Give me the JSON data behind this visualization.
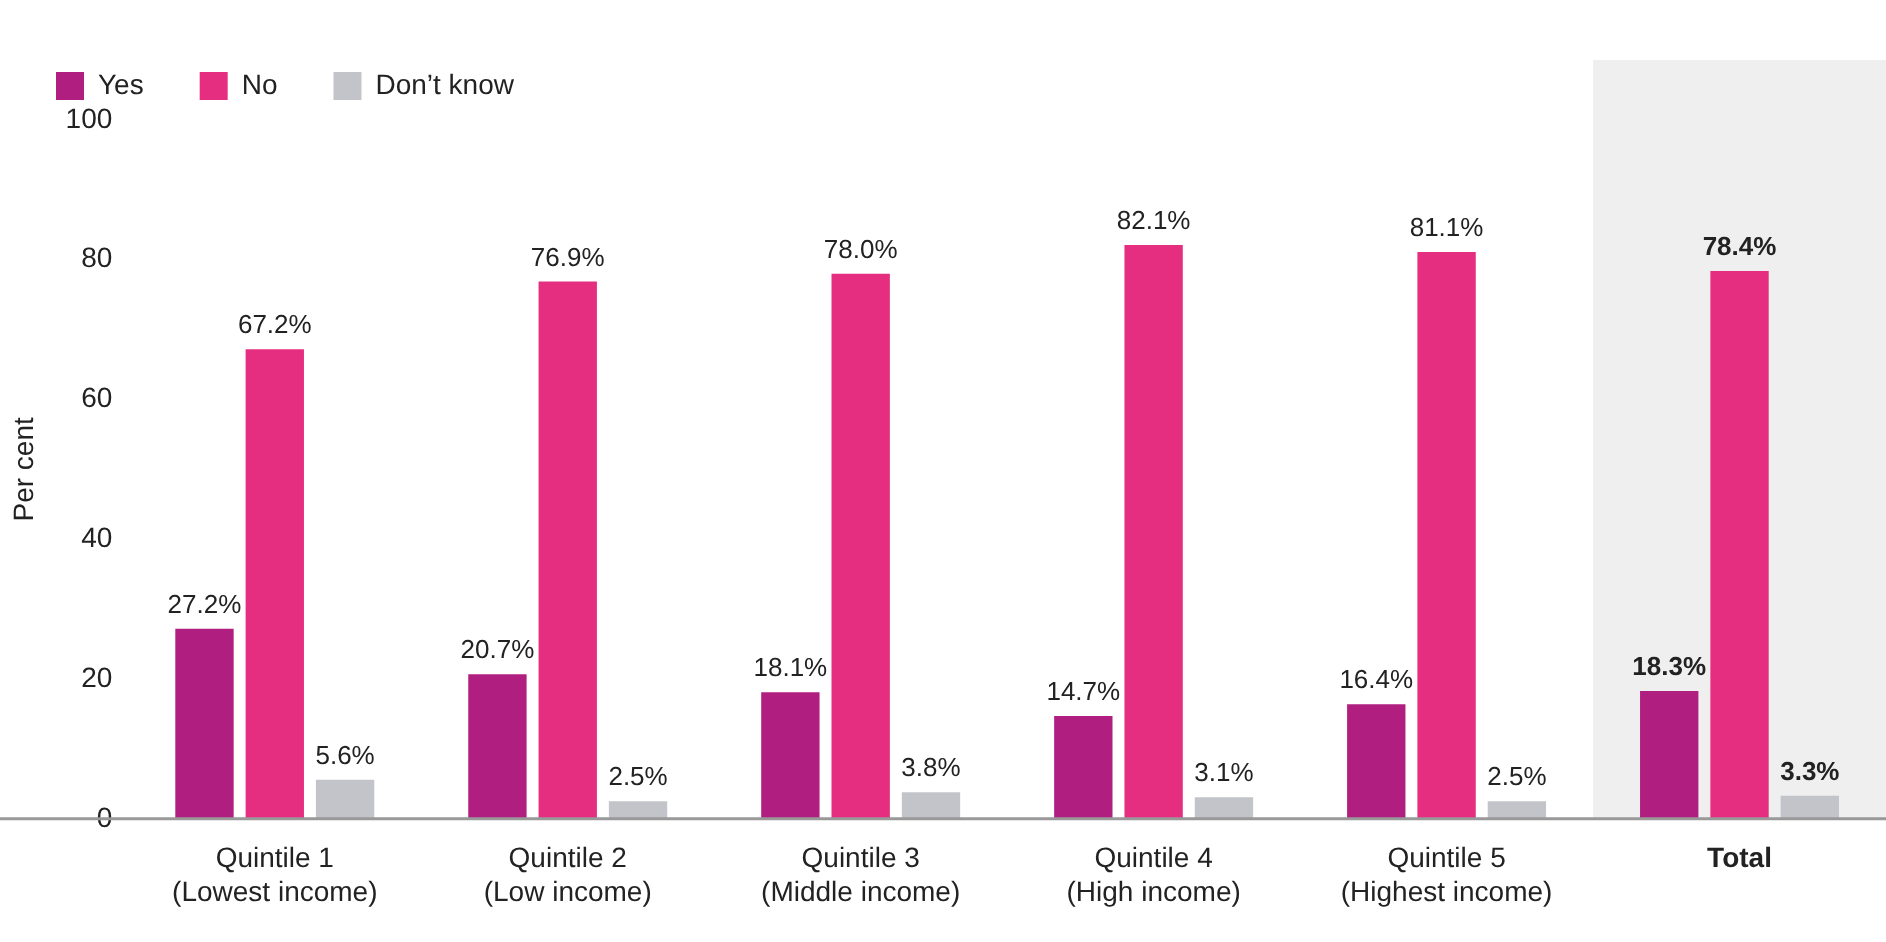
{
  "chart_data": {
    "type": "bar",
    "ylabel": "Per cent",
    "categories": [
      "Quintile 1\n(Lowest income)",
      "Quintile 2\n(Low income)",
      "Quintile 3\n(Middle income)",
      "Quintile 4\n(High income)",
      "Quintile 5\n(Highest income)",
      "Total"
    ],
    "series": [
      {
        "name": "Yes",
        "color": "#b01f80",
        "values": [
          27.2,
          20.7,
          18.1,
          14.7,
          16.4,
          18.3
        ],
        "value_labels": [
          "27.2%",
          "20.7%",
          "18.1%",
          "14.7%",
          "16.4%",
          "18.3%"
        ]
      },
      {
        "name": "No",
        "color": "#e52e7f",
        "values": [
          67.2,
          76.9,
          78.0,
          82.1,
          81.1,
          78.4
        ],
        "value_labels": [
          "67.2%",
          "76.9%",
          "78.0%",
          "82.1%",
          "81.1%",
          "78.4%"
        ]
      },
      {
        "name": "Don’t know",
        "color": "#c2c4ca",
        "values": [
          5.6,
          2.5,
          3.8,
          3.1,
          2.5,
          3.3
        ],
        "value_labels": [
          "5.6%",
          "2.5%",
          "3.8%",
          "3.1%",
          "2.5%",
          "3.3%"
        ]
      }
    ],
    "ylim": [
      0,
      100
    ],
    "yticks": [
      0,
      20,
      40,
      60,
      80,
      100
    ],
    "grid": false,
    "legend": "top left",
    "bands": [
      {
        "axis": "x",
        "from": "Total",
        "to": "Total",
        "color": "#efefef"
      }
    ]
  }
}
